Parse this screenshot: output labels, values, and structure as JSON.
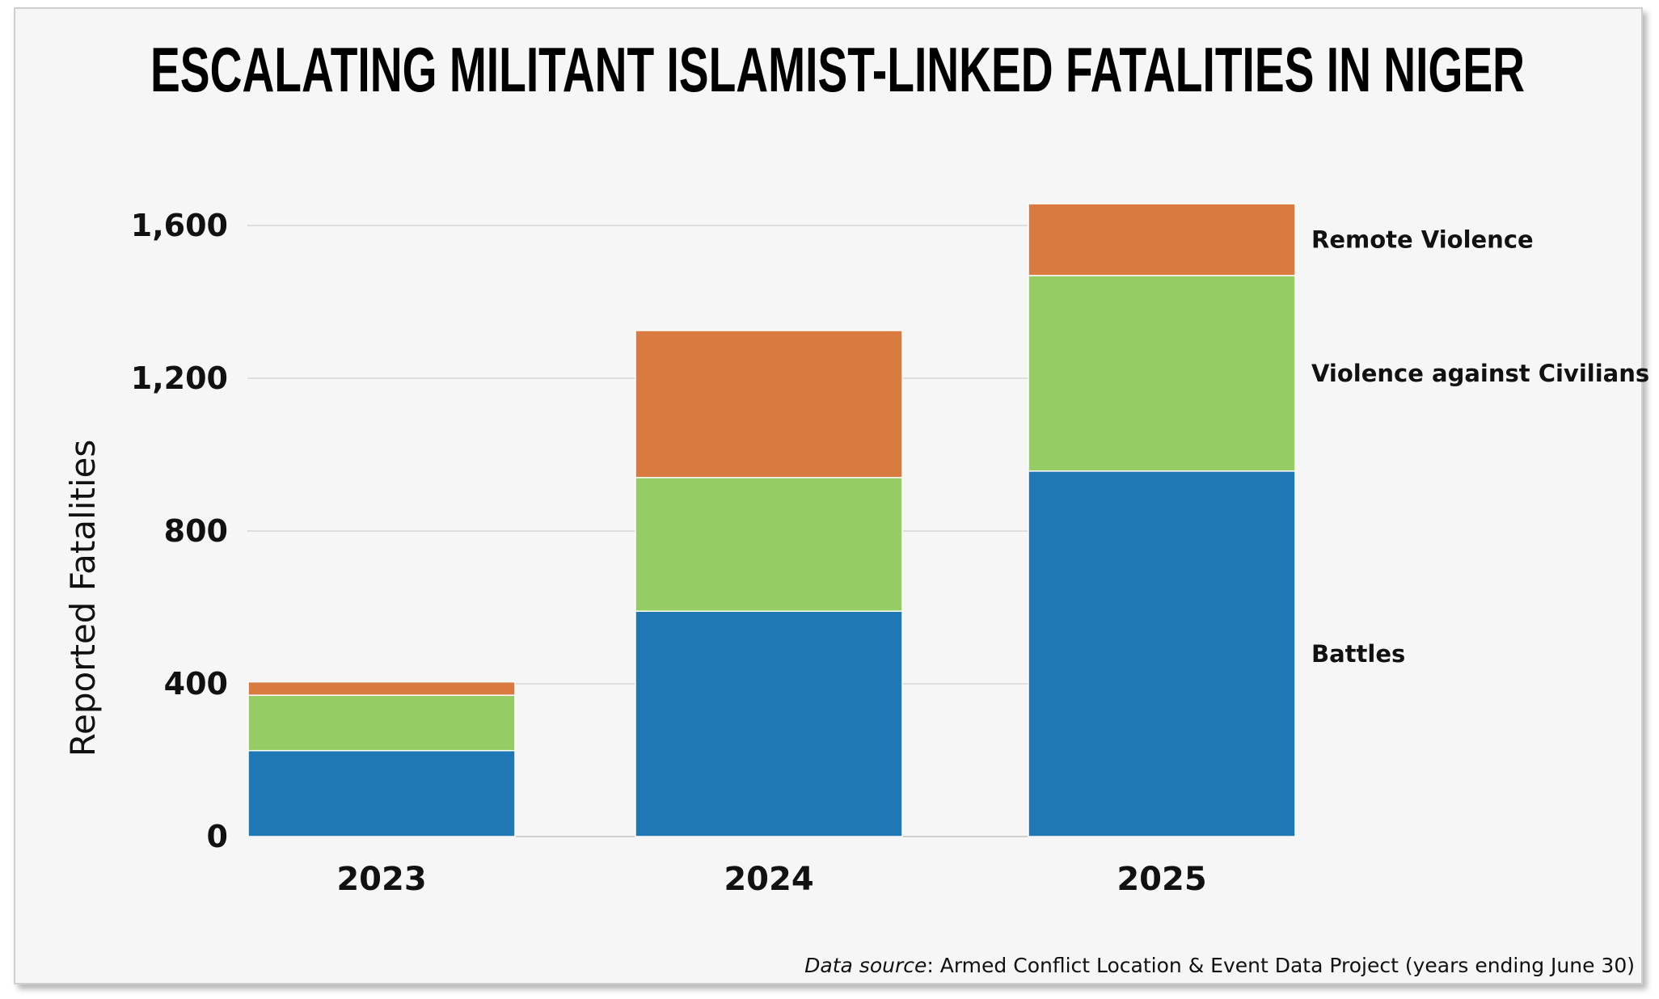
{
  "chart_data": {
    "type": "bar",
    "stacked": true,
    "title": "ESCALATING MILITANT ISLAMIST-LINKED FATALITIES IN NIGER",
    "ylabel": "Reported Fatalities",
    "xlabel": "",
    "categories": [
      "2023",
      "2024",
      "2025"
    ],
    "ylim": [
      0,
      1600
    ],
    "yticks": [
      0,
      400,
      800,
      1200,
      1600
    ],
    "ytick_labels": [
      "0",
      "400",
      "800",
      "1,200",
      "1,600"
    ],
    "grid": true,
    "legend": "right, labels aligned beside the last bar",
    "series": [
      {
        "name": "Battles",
        "color": "#1f77b4",
        "values": [
          225,
          590,
          957
        ]
      },
      {
        "name": "Violence against Civilians",
        "color": "#96cc64",
        "values": [
          145,
          350,
          512
        ]
      },
      {
        "name": "Remote Violence",
        "color": "#d97b40",
        "values": [
          35,
          385,
          188
        ]
      }
    ],
    "source_label": "Data source",
    "source_text": ": Armed Conflict Location & Event Data Project (years ending June 30)"
  }
}
